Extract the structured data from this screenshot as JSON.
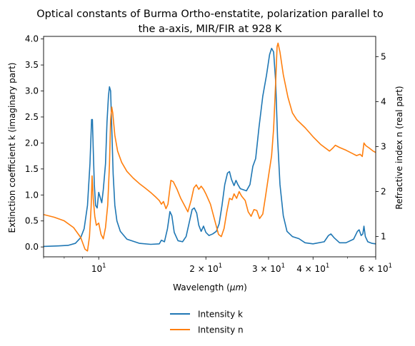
{
  "chart_data": {
    "type": "line",
    "title": "Optical constants of Burma Ortho-enstatite, polarization parallel to the a-axis, MIR/FIR at 928 K",
    "title_lines": [
      "Optical constants of Burma Ortho-enstatite, polarization parallel to",
      "the a-axis, MIR/FIR at 928 K"
    ],
    "xlabel": "Wavelength (μm)",
    "xlabel_parts": {
      "prefix": "Wavelength (",
      "symbol": "μm",
      "suffix": ")"
    },
    "ylabel_left": "Extinction coefficient k (imaginary part)",
    "ylabel_right": "Refractive index n (real part)",
    "x_scale": "log",
    "xlim": [
      7.0,
      60.0
    ],
    "ylim_left": [
      -0.19,
      4.05
    ],
    "ylim_right": [
      0.55,
      5.45
    ],
    "x_ticks": [
      {
        "value": 10,
        "base": "10",
        "exp": "1"
      },
      {
        "value": 20,
        "base": "2 × 10",
        "exp": "1"
      },
      {
        "value": 30,
        "base": "3 × 10",
        "exp": "1"
      },
      {
        "value": 40,
        "base": "4 × 10",
        "exp": "1"
      },
      {
        "value": 60,
        "base": "6 × 10",
        "exp": "1"
      }
    ],
    "y_ticks_left": [
      "0.0",
      "0.5",
      "1.0",
      "1.5",
      "2.0",
      "2.5",
      "3.0",
      "3.5",
      "4.0"
    ],
    "y_ticks_right": [
      "1",
      "2",
      "3",
      "4",
      "5"
    ],
    "grid": false,
    "legend_position": "below",
    "series": [
      {
        "name": "Intensity k",
        "axis": "left",
        "color": "#1f77b4",
        "points": [
          [
            7.0,
            0.01
          ],
          [
            7.7,
            0.02
          ],
          [
            8.2,
            0.03
          ],
          [
            8.6,
            0.07
          ],
          [
            8.9,
            0.18
          ],
          [
            9.1,
            0.35
          ],
          [
            9.3,
            0.8
          ],
          [
            9.45,
            1.6
          ],
          [
            9.55,
            2.45
          ],
          [
            9.6,
            2.45
          ],
          [
            9.65,
            1.9
          ],
          [
            9.72,
            1.2
          ],
          [
            9.8,
            0.8
          ],
          [
            9.9,
            0.75
          ],
          [
            10.0,
            1.05
          ],
          [
            10.1,
            0.95
          ],
          [
            10.2,
            0.85
          ],
          [
            10.3,
            1.1
          ],
          [
            10.45,
            1.6
          ],
          [
            10.55,
            2.4
          ],
          [
            10.65,
            2.9
          ],
          [
            10.72,
            3.08
          ],
          [
            10.8,
            3.0
          ],
          [
            10.88,
            2.3
          ],
          [
            10.98,
            1.4
          ],
          [
            11.1,
            0.8
          ],
          [
            11.25,
            0.5
          ],
          [
            11.5,
            0.3
          ],
          [
            12.0,
            0.15
          ],
          [
            13.0,
            0.07
          ],
          [
            14.0,
            0.05
          ],
          [
            14.8,
            0.06
          ],
          [
            15.0,
            0.13
          ],
          [
            15.3,
            0.1
          ],
          [
            15.6,
            0.35
          ],
          [
            15.85,
            0.68
          ],
          [
            16.05,
            0.6
          ],
          [
            16.3,
            0.28
          ],
          [
            16.7,
            0.12
          ],
          [
            17.2,
            0.1
          ],
          [
            17.6,
            0.2
          ],
          [
            18.0,
            0.5
          ],
          [
            18.3,
            0.72
          ],
          [
            18.55,
            0.75
          ],
          [
            18.85,
            0.65
          ],
          [
            19.1,
            0.42
          ],
          [
            19.4,
            0.3
          ],
          [
            19.7,
            0.4
          ],
          [
            20.0,
            0.28
          ],
          [
            20.4,
            0.22
          ],
          [
            20.9,
            0.25
          ],
          [
            21.4,
            0.3
          ],
          [
            21.8,
            0.45
          ],
          [
            22.2,
            0.8
          ],
          [
            22.6,
            1.2
          ],
          [
            23.0,
            1.42
          ],
          [
            23.3,
            1.45
          ],
          [
            23.6,
            1.3
          ],
          [
            24.0,
            1.18
          ],
          [
            24.3,
            1.28
          ],
          [
            24.6,
            1.2
          ],
          [
            25.0,
            1.12
          ],
          [
            25.5,
            1.1
          ],
          [
            26.0,
            1.08
          ],
          [
            26.6,
            1.2
          ],
          [
            27.1,
            1.55
          ],
          [
            27.6,
            1.7
          ],
          [
            28.2,
            2.3
          ],
          [
            28.9,
            2.9
          ],
          [
            29.6,
            3.3
          ],
          [
            30.2,
            3.7
          ],
          [
            30.6,
            3.82
          ],
          [
            31.0,
            3.75
          ],
          [
            31.4,
            3.2
          ],
          [
            31.8,
            2.1
          ],
          [
            32.3,
            1.2
          ],
          [
            33.0,
            0.6
          ],
          [
            33.8,
            0.3
          ],
          [
            35.0,
            0.2
          ],
          [
            36.5,
            0.16
          ],
          [
            38.0,
            0.08
          ],
          [
            40.0,
            0.06
          ],
          [
            43.0,
            0.1
          ],
          [
            44.2,
            0.22
          ],
          [
            44.9,
            0.25
          ],
          [
            45.8,
            0.18
          ],
          [
            47.5,
            0.08
          ],
          [
            49.5,
            0.08
          ],
          [
            52.0,
            0.15
          ],
          [
            53.3,
            0.3
          ],
          [
            53.9,
            0.33
          ],
          [
            54.6,
            0.22
          ],
          [
            55.2,
            0.25
          ],
          [
            55.6,
            0.4
          ],
          [
            56.1,
            0.2
          ],
          [
            57.0,
            0.1
          ],
          [
            58.5,
            0.07
          ],
          [
            60.0,
            0.06
          ]
        ]
      },
      {
        "name": "Intensity n",
        "axis": "right",
        "color": "#ff7f0e",
        "points": [
          [
            7.0,
            1.49
          ],
          [
            7.5,
            1.43
          ],
          [
            8.0,
            1.35
          ],
          [
            8.5,
            1.2
          ],
          [
            8.9,
            0.98
          ],
          [
            9.15,
            0.72
          ],
          [
            9.3,
            0.68
          ],
          [
            9.42,
            1.0
          ],
          [
            9.52,
            1.65
          ],
          [
            9.58,
            2.35
          ],
          [
            9.65,
            1.85
          ],
          [
            9.75,
            1.45
          ],
          [
            9.85,
            1.25
          ],
          [
            10.0,
            1.3
          ],
          [
            10.15,
            1.05
          ],
          [
            10.3,
            0.95
          ],
          [
            10.45,
            1.2
          ],
          [
            10.6,
            1.7
          ],
          [
            10.72,
            2.6
          ],
          [
            10.8,
            3.6
          ],
          [
            10.88,
            3.88
          ],
          [
            10.95,
            3.75
          ],
          [
            11.1,
            3.25
          ],
          [
            11.3,
            2.9
          ],
          [
            11.6,
            2.65
          ],
          [
            12.0,
            2.45
          ],
          [
            12.5,
            2.3
          ],
          [
            13.0,
            2.18
          ],
          [
            13.5,
            2.08
          ],
          [
            14.0,
            1.98
          ],
          [
            14.5,
            1.87
          ],
          [
            14.8,
            1.8
          ],
          [
            15.0,
            1.72
          ],
          [
            15.2,
            1.78
          ],
          [
            15.45,
            1.62
          ],
          [
            15.65,
            1.72
          ],
          [
            15.95,
            2.25
          ],
          [
            16.2,
            2.22
          ],
          [
            16.6,
            2.05
          ],
          [
            17.0,
            1.85
          ],
          [
            17.4,
            1.7
          ],
          [
            17.8,
            1.55
          ],
          [
            18.2,
            1.82
          ],
          [
            18.5,
            2.08
          ],
          [
            18.8,
            2.15
          ],
          [
            19.1,
            2.05
          ],
          [
            19.4,
            2.12
          ],
          [
            19.7,
            2.05
          ],
          [
            20.0,
            1.95
          ],
          [
            20.6,
            1.72
          ],
          [
            21.2,
            1.35
          ],
          [
            21.7,
            1.05
          ],
          [
            22.1,
            1.0
          ],
          [
            22.5,
            1.18
          ],
          [
            22.9,
            1.55
          ],
          [
            23.3,
            1.85
          ],
          [
            23.7,
            1.82
          ],
          [
            24.0,
            1.95
          ],
          [
            24.4,
            1.85
          ],
          [
            24.8,
            2.0
          ],
          [
            25.2,
            1.9
          ],
          [
            25.8,
            1.8
          ],
          [
            26.3,
            1.55
          ],
          [
            26.8,
            1.45
          ],
          [
            27.3,
            1.6
          ],
          [
            27.8,
            1.58
          ],
          [
            28.3,
            1.4
          ],
          [
            28.9,
            1.5
          ],
          [
            29.4,
            1.88
          ],
          [
            30.0,
            2.35
          ],
          [
            30.6,
            2.8
          ],
          [
            31.0,
            3.4
          ],
          [
            31.4,
            4.4
          ],
          [
            31.7,
            5.22
          ],
          [
            31.9,
            5.3
          ],
          [
            32.3,
            5.1
          ],
          [
            33.0,
            4.6
          ],
          [
            34.0,
            4.1
          ],
          [
            35.0,
            3.75
          ],
          [
            36.0,
            3.6
          ],
          [
            38.0,
            3.42
          ],
          [
            40.0,
            3.22
          ],
          [
            42.0,
            3.05
          ],
          [
            44.5,
            2.9
          ],
          [
            45.5,
            2.97
          ],
          [
            46.2,
            3.03
          ],
          [
            47.5,
            2.98
          ],
          [
            49.5,
            2.92
          ],
          [
            51.5,
            2.85
          ],
          [
            53.0,
            2.8
          ],
          [
            54.2,
            2.83
          ],
          [
            55.0,
            2.78
          ],
          [
            55.6,
            3.08
          ],
          [
            56.3,
            3.02
          ],
          [
            57.5,
            2.97
          ],
          [
            59.0,
            2.9
          ],
          [
            60.0,
            2.87
          ]
        ]
      }
    ]
  }
}
